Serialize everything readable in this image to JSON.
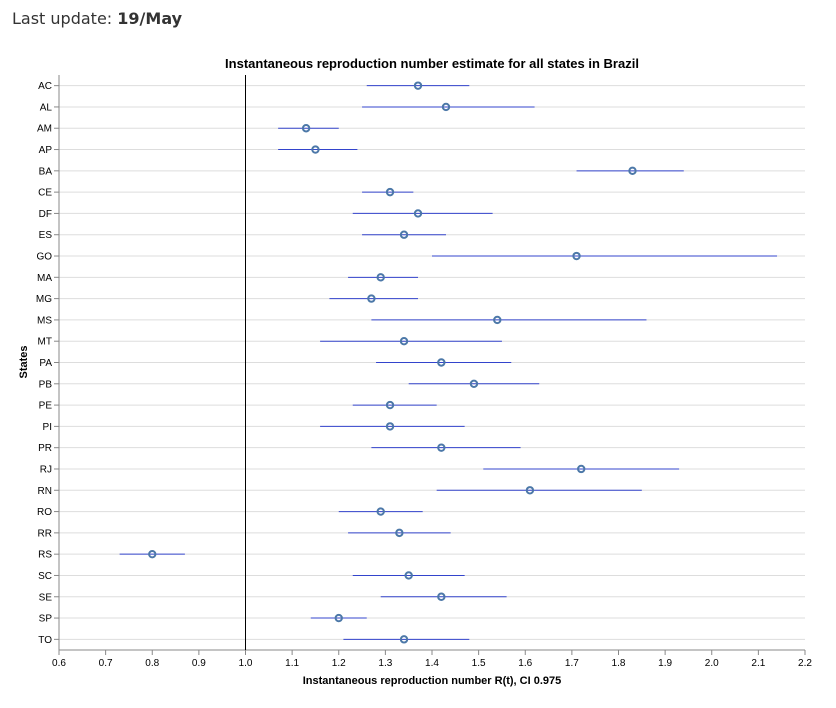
{
  "header": {
    "label": "Last update:",
    "date": "19/May"
  },
  "colors": {
    "mark": "#4c78a8",
    "ci_line": "#3344cc",
    "grid": "#dddddd",
    "axis": "#888888",
    "reference_line": "#000000"
  },
  "chart_data": {
    "type": "scatter",
    "title": "Instantaneous reproduction number estimate for all states in Brazil",
    "xlabel": "Instantaneous reproduction number R(t), CI 0.975",
    "ylabel": "States",
    "xlim": [
      0.6,
      2.2
    ],
    "x_ticks": [
      0.6,
      0.7,
      0.8,
      0.9,
      1.0,
      1.1,
      1.2,
      1.3,
      1.4,
      1.5,
      1.6,
      1.7,
      1.8,
      1.9,
      2.0,
      2.1,
      2.2
    ],
    "x_tick_labels": [
      "0.6",
      "0.7",
      "0.8",
      "0.9",
      "1.0",
      "1.1",
      "1.2",
      "1.3",
      "1.4",
      "1.5",
      "1.6",
      "1.7",
      "1.8",
      "1.9",
      "2.0",
      "2.1",
      "2.2"
    ],
    "reference_x": 1.0,
    "grid": true,
    "points": [
      {
        "state": "AC",
        "value": 1.37,
        "low": 1.26,
        "high": 1.48
      },
      {
        "state": "AL",
        "value": 1.43,
        "low": 1.25,
        "high": 1.62
      },
      {
        "state": "AM",
        "value": 1.13,
        "low": 1.07,
        "high": 1.2
      },
      {
        "state": "AP",
        "value": 1.15,
        "low": 1.07,
        "high": 1.24
      },
      {
        "state": "BA",
        "value": 1.83,
        "low": 1.71,
        "high": 1.94
      },
      {
        "state": "CE",
        "value": 1.31,
        "low": 1.25,
        "high": 1.36
      },
      {
        "state": "DF",
        "value": 1.37,
        "low": 1.23,
        "high": 1.53
      },
      {
        "state": "ES",
        "value": 1.34,
        "low": 1.25,
        "high": 1.43
      },
      {
        "state": "GO",
        "value": 1.71,
        "low": 1.4,
        "high": 2.14
      },
      {
        "state": "MA",
        "value": 1.29,
        "low": 1.22,
        "high": 1.37
      },
      {
        "state": "MG",
        "value": 1.27,
        "low": 1.18,
        "high": 1.37
      },
      {
        "state": "MS",
        "value": 1.54,
        "low": 1.27,
        "high": 1.86
      },
      {
        "state": "MT",
        "value": 1.34,
        "low": 1.16,
        "high": 1.55
      },
      {
        "state": "PA",
        "value": 1.42,
        "low": 1.28,
        "high": 1.57
      },
      {
        "state": "PB",
        "value": 1.49,
        "low": 1.35,
        "high": 1.63
      },
      {
        "state": "PE",
        "value": 1.31,
        "low": 1.23,
        "high": 1.41
      },
      {
        "state": "PI",
        "value": 1.31,
        "low": 1.16,
        "high": 1.47
      },
      {
        "state": "PR",
        "value": 1.42,
        "low": 1.27,
        "high": 1.59
      },
      {
        "state": "RJ",
        "value": 1.72,
        "low": 1.51,
        "high": 1.93
      },
      {
        "state": "RN",
        "value": 1.61,
        "low": 1.41,
        "high": 1.85
      },
      {
        "state": "RO",
        "value": 1.29,
        "low": 1.2,
        "high": 1.38
      },
      {
        "state": "RR",
        "value": 1.33,
        "low": 1.22,
        "high": 1.44
      },
      {
        "state": "RS",
        "value": 0.8,
        "low": 0.73,
        "high": 0.87
      },
      {
        "state": "SC",
        "value": 1.35,
        "low": 1.23,
        "high": 1.47
      },
      {
        "state": "SE",
        "value": 1.42,
        "low": 1.29,
        "high": 1.56
      },
      {
        "state": "SP",
        "value": 1.2,
        "low": 1.14,
        "high": 1.26
      },
      {
        "state": "TO",
        "value": 1.34,
        "low": 1.21,
        "high": 1.48
      }
    ]
  }
}
